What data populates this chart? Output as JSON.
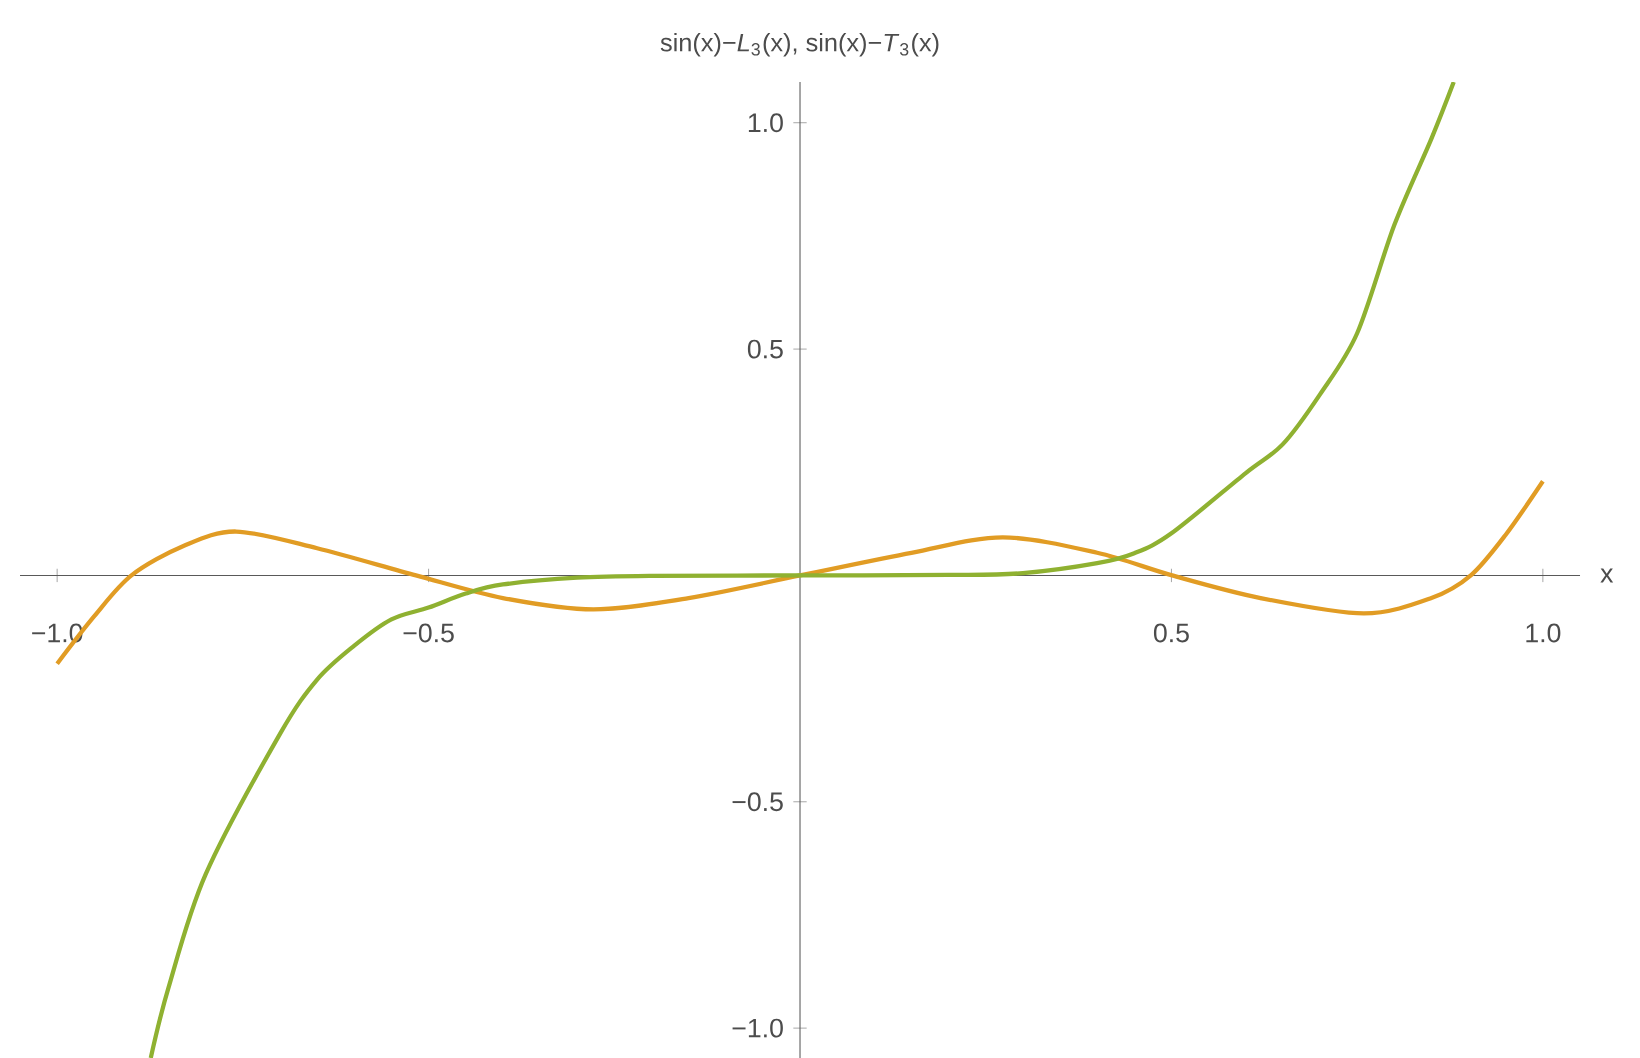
{
  "chart_data": {
    "type": "line",
    "ylabel": "sin(x)−*L*$_{3}$(x), sin(x)−*T*$_{3}$(x)",
    "xlabel": "x",
    "xlim": [
      -1.05,
      1.05
    ],
    "ylim": [
      -1.066,
      1.09
    ],
    "xticks": [
      {
        "value": -1.0,
        "label": "−1.0"
      },
      {
        "value": -0.5,
        "label": "−0.5"
      },
      {
        "value": 0.5,
        "label": "0.5"
      },
      {
        "value": 1.0,
        "label": "1.0"
      }
    ],
    "yticks": [
      {
        "value": -1.0,
        "label": "−1.0"
      },
      {
        "value": -0.5,
        "label": "−0.5"
      },
      {
        "value": 0.5,
        "label": "0.5"
      },
      {
        "value": 1.0,
        "label": "1.0"
      }
    ],
    "grid": false,
    "marker": "none",
    "line_style": "solid",
    "series": [
      {
        "color": "#e19c24",
        "x": [
          -1.0,
          -0.95,
          -0.9,
          -0.83,
          -0.759,
          -0.65,
          -0.517,
          -0.4,
          -0.278,
          -0.15,
          0.0,
          0.15,
          0.273,
          0.4,
          0.501,
          0.62,
          0.759,
          0.85,
          0.903,
          0.95,
          1.0
        ],
        "values": [
          -0.195,
          -0.09,
          0.0,
          0.065,
          0.097,
          0.06,
          0.0,
          -0.05,
          -0.075,
          -0.05,
          0.0,
          0.05,
          0.084,
          0.05,
          0.0,
          -0.05,
          -0.084,
          -0.05,
          0.0,
          0.09,
          0.208
        ]
      },
      {
        "color": "#8fb131",
        "x": [
          -0.874,
          -0.85,
          -0.8,
          -0.7,
          -0.65,
          -0.6,
          -0.55,
          -0.5,
          -0.45,
          -0.4,
          -0.3,
          -0.2,
          0.0,
          0.2,
          0.3,
          0.4,
          0.45,
          0.5,
          0.6,
          0.65,
          0.7,
          0.75,
          0.8,
          0.85,
          0.88
        ],
        "values": [
          -1.066,
          -0.91,
          -0.66,
          -0.35,
          -0.23,
          -0.155,
          -0.097,
          -0.071,
          -0.04,
          -0.02,
          -0.005,
          -0.001,
          0.0,
          0.001,
          0.005,
          0.027,
          0.049,
          0.093,
          0.226,
          0.29,
          0.4,
          0.535,
          0.774,
          0.965,
          1.09
        ]
      }
    ]
  }
}
